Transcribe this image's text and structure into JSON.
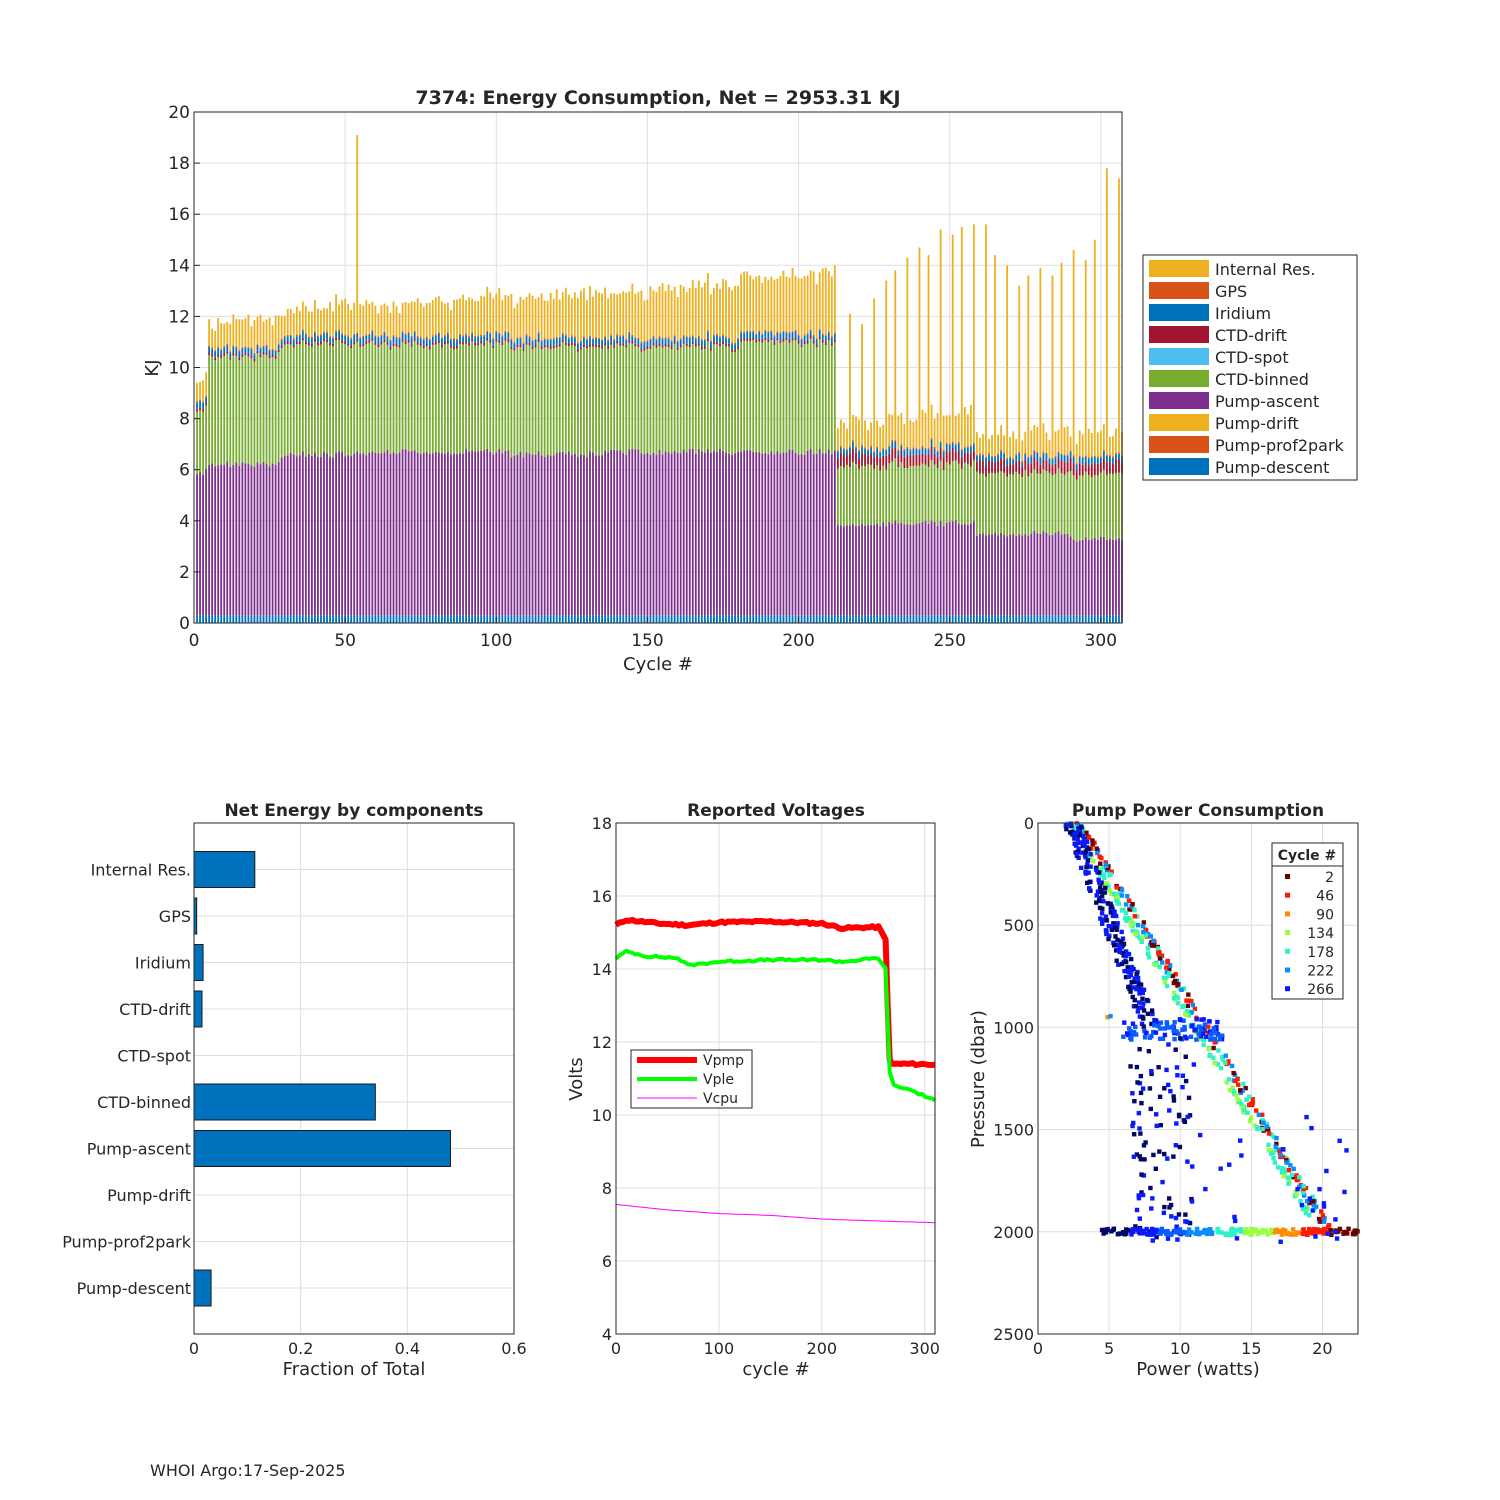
{
  "footer": "WHOI Argo:17-Sep-2025",
  "chart_data": [
    {
      "type": "bar",
      "stacked": true,
      "title": "7374: Energy Consumption,  Net = 2953.31 KJ",
      "xlabel": "Cycle #",
      "ylabel": "KJ",
      "xlim": [
        0,
        307
      ],
      "ylim": [
        0,
        20
      ],
      "xticks": [
        "0",
        "50",
        "100",
        "150",
        "200",
        "250",
        "300"
      ],
      "yticks": [
        "0",
        "2",
        "4",
        "6",
        "8",
        "10",
        "12",
        "14",
        "16",
        "18",
        "20"
      ],
      "grid": true,
      "legend_position": "right",
      "series": [
        {
          "name": "Internal Res.",
          "color": "#EDB120"
        },
        {
          "name": "GPS",
          "color": "#D95319"
        },
        {
          "name": "Iridium",
          "color": "#0072BD"
        },
        {
          "name": "CTD-drift",
          "color": "#A2142F"
        },
        {
          "name": "CTD-spot",
          "color": "#4DBEEE"
        },
        {
          "name": "CTD-binned",
          "color": "#77AC30"
        },
        {
          "name": "Pump-ascent",
          "color": "#7E2F8E"
        },
        {
          "name": "Pump-drift",
          "color": "#EDB120"
        },
        {
          "name": "Pump-prof2park",
          "color": "#D95319"
        },
        {
          "name": "Pump-descent",
          "color": "#0072BD"
        }
      ],
      "segments": [
        {
          "from": 1,
          "to": 4,
          "ascent": 5.6,
          "binned": 2.4,
          "internal": 0.8
        },
        {
          "from": 5,
          "to": 28,
          "ascent": 5.9,
          "binned": 4.2,
          "internal": 0.9
        },
        {
          "from": 29,
          "to": 59,
          "ascent": 6.3,
          "binned": 4.3,
          "internal": 1.0
        },
        {
          "from": 60,
          "to": 104,
          "ascent": 6.4,
          "binned": 4.2,
          "internal": 1.1
        },
        {
          "from": 105,
          "to": 135,
          "ascent": 6.3,
          "binned": 4.2,
          "internal": 1.5
        },
        {
          "from": 136,
          "to": 180,
          "ascent": 6.4,
          "binned": 4.1,
          "internal": 1.7
        },
        {
          "from": 181,
          "to": 212,
          "ascent": 6.4,
          "binned": 4.3,
          "internal": 2.1
        },
        {
          "from": 213,
          "to": 258,
          "ascent": 3.6,
          "binned": 2.3,
          "internal": 0.9
        },
        {
          "from": 259,
          "to": 289,
          "ascent": 3.2,
          "binned": 2.4,
          "internal": 0.7
        },
        {
          "from": 290,
          "to": 307,
          "ascent": 3.0,
          "binned": 2.5,
          "internal": 0.8
        }
      ],
      "spikes": [
        {
          "cycle": 54,
          "total": 19.1
        },
        {
          "cycle": 217,
          "total": 12.1
        },
        {
          "cycle": 221,
          "total": 11.7
        },
        {
          "cycle": 225,
          "total": 12.7
        },
        {
          "cycle": 229,
          "total": 13.4
        },
        {
          "cycle": 232,
          "total": 13.8
        },
        {
          "cycle": 236,
          "total": 14.3
        },
        {
          "cycle": 240,
          "total": 14.7
        },
        {
          "cycle": 243,
          "total": 14.4
        },
        {
          "cycle": 247,
          "total": 15.4
        },
        {
          "cycle": 251,
          "total": 15.2
        },
        {
          "cycle": 254,
          "total": 15.5
        },
        {
          "cycle": 258,
          "total": 15.6
        },
        {
          "cycle": 262,
          "total": 15.6
        },
        {
          "cycle": 265,
          "total": 14.4
        },
        {
          "cycle": 269,
          "total": 14.0
        },
        {
          "cycle": 273,
          "total": 13.2
        },
        {
          "cycle": 276,
          "total": 13.6
        },
        {
          "cycle": 280,
          "total": 13.9
        },
        {
          "cycle": 284,
          "total": 13.6
        },
        {
          "cycle": 287,
          "total": 14.1
        },
        {
          "cycle": 291,
          "total": 14.6
        },
        {
          "cycle": 295,
          "total": 14.2
        },
        {
          "cycle": 298,
          "total": 15.0
        },
        {
          "cycle": 302,
          "total": 17.8
        },
        {
          "cycle": 306,
          "total": 17.4
        }
      ]
    },
    {
      "type": "bar",
      "orientation": "horizontal",
      "title": "Net Energy by components",
      "xlabel": "Fraction of Total",
      "xlim": [
        0,
        0.6
      ],
      "xticks": [
        "0",
        "0.2",
        "0.4",
        "0.6"
      ],
      "grid": true,
      "bar_color": "#0072BD",
      "categories": [
        "Internal Res.",
        "GPS",
        "Iridium",
        "CTD-drift",
        "CTD-spot",
        "CTD-binned",
        "Pump-ascent",
        "Pump-drift",
        "Pump-prof2park",
        "Pump-descent"
      ],
      "values": [
        0.114,
        0.005,
        0.017,
        0.015,
        0.0,
        0.34,
        0.481,
        0.0,
        0.0,
        0.032
      ]
    },
    {
      "type": "line",
      "title": "Reported Voltages",
      "xlabel": "cycle #",
      "ylabel": "Volts",
      "xlim": [
        0,
        310
      ],
      "ylim": [
        4,
        18
      ],
      "xticks": [
        "0",
        "100",
        "200",
        "300"
      ],
      "yticks": [
        "4",
        "6",
        "8",
        "10",
        "12",
        "14",
        "16",
        "18"
      ],
      "grid": true,
      "legend_position": "center-left",
      "series": [
        {
          "name": "Vpmp",
          "color": "#ff0000",
          "x": [
            0,
            10,
            40,
            70,
            100,
            150,
            200,
            220,
            255,
            262,
            264,
            266,
            268,
            285,
            310
          ],
          "y": [
            15.2,
            15.35,
            15.25,
            15.2,
            15.28,
            15.3,
            15.25,
            15.12,
            15.15,
            14.8,
            13.0,
            11.5,
            11.4,
            11.4,
            11.38
          ]
        },
        {
          "name": "Vple",
          "color": "#00ff00",
          "x": [
            0,
            10,
            30,
            60,
            70,
            100,
            150,
            200,
            220,
            255,
            262,
            264,
            266,
            270,
            285,
            310
          ],
          "y": [
            14.3,
            14.48,
            14.35,
            14.3,
            14.1,
            14.2,
            14.25,
            14.25,
            14.2,
            14.3,
            14.0,
            12.5,
            11.2,
            10.8,
            10.7,
            10.4
          ]
        },
        {
          "name": "Vcpu",
          "color": "#ff00ff",
          "x": [
            0,
            50,
            100,
            150,
            200,
            250,
            310
          ],
          "y": [
            7.55,
            7.4,
            7.3,
            7.25,
            7.15,
            7.1,
            7.05
          ]
        }
      ]
    },
    {
      "type": "scatter",
      "title": "Pump Power Consumption",
      "xlabel": "Power (watts)",
      "ylabel": "Pressure (dbar)",
      "xlim": [
        0,
        22.5
      ],
      "ylim": [
        2500,
        0
      ],
      "xticks": [
        "0",
        "5",
        "10",
        "15",
        "20"
      ],
      "yticks": [
        "0",
        "500",
        "1000",
        "1500",
        "2000",
        "2500"
      ],
      "grid": true,
      "legend_title": "Cycle #",
      "legend_position": "top-right",
      "series": [
        {
          "name": "2",
          "color": "#6b0000"
        },
        {
          "name": "46",
          "color": "#ff1a00"
        },
        {
          "name": "90",
          "color": "#ff8c00"
        },
        {
          "name": "134",
          "color": "#9aff40"
        },
        {
          "name": "178",
          "color": "#2ef2c8"
        },
        {
          "name": "222",
          "color": "#0a8cff"
        },
        {
          "name": "266",
          "color": "#0a1aff"
        }
      ]
    }
  ]
}
